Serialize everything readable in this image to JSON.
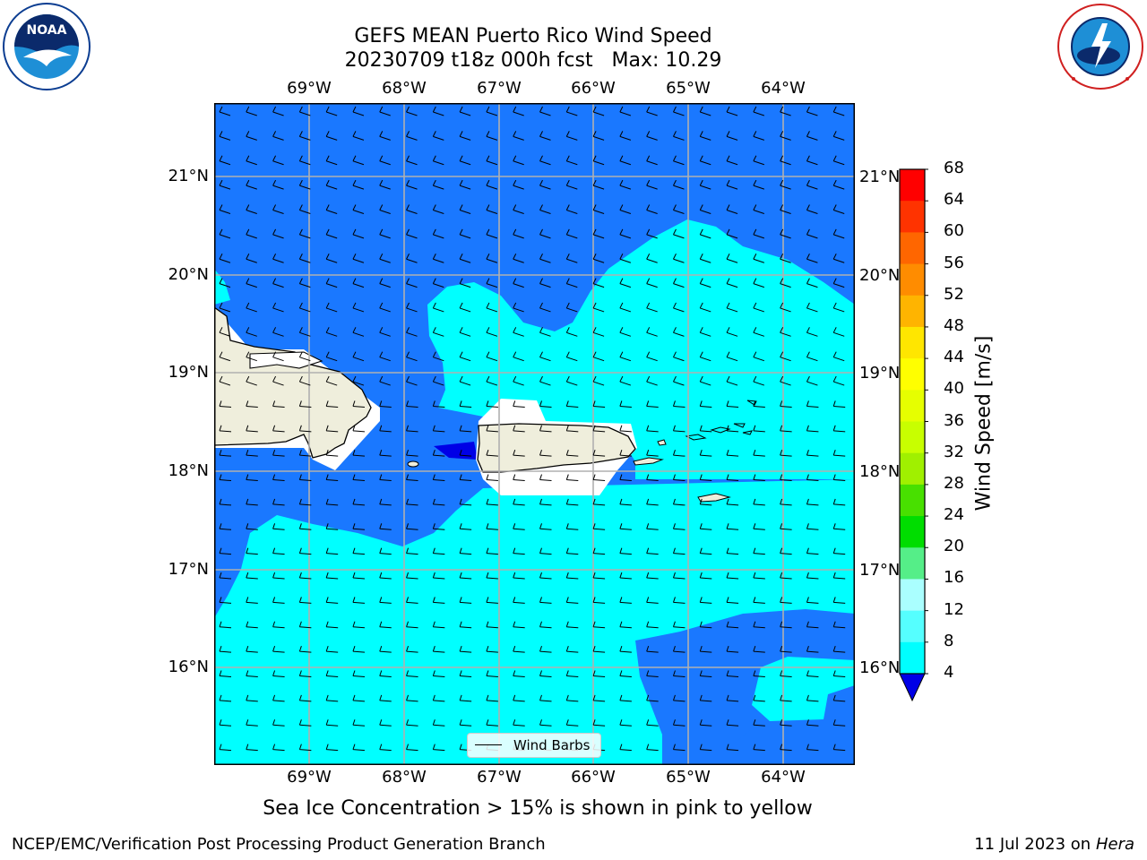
{
  "header": {
    "title_line1": "GEFS MEAN Puerto Rico Wind Speed",
    "title_line2": "20230709 t18z 000h fcst   Max: 10.29"
  },
  "logos": {
    "left": {
      "icon": "noaa-logo-icon",
      "text": "NOAA",
      "ring_text": "NATIONAL OCEANIC AND ATMOSPHERIC ADMINISTRATION · U.S. DEPARTMENT OF COMMERCE"
    },
    "right": {
      "icon": "nws-logo-icon",
      "ring_text": "NATIONAL WEATHER SERVICE"
    }
  },
  "map": {
    "lon_labels": [
      "69°W",
      "68°W",
      "67°W",
      "66°W",
      "65°W",
      "64°W"
    ],
    "lat_labels": [
      "21°N",
      "20°N",
      "19°N",
      "18°N",
      "17°N",
      "16°N"
    ],
    "colors": {
      "band_4_8": "#1a78ff",
      "band_8_12": "#00ffff",
      "band_0_4": "#0000e6",
      "land": "#efeedc",
      "grid": "#b0b0b0"
    }
  },
  "legend": {
    "label": "Wind Barbs"
  },
  "colorbar": {
    "title": "Wind Speed [m/s]",
    "ticks": [
      "68",
      "64",
      "60",
      "56",
      "52",
      "48",
      "44",
      "40",
      "36",
      "32",
      "28",
      "24",
      "20",
      "16",
      "12",
      "8",
      "4"
    ],
    "colors": [
      "#ff0000",
      "#ff3300",
      "#ff6600",
      "#ff8c00",
      "#ffb400",
      "#ffe600",
      "#ffff00",
      "#e6ff00",
      "#c8ff00",
      "#a0f000",
      "#48e000",
      "#00dd00",
      "#55ee88",
      "#aaffff",
      "#55ffff",
      "#00ffff",
      "#1a78ff"
    ],
    "extend_color": "#0000e6"
  },
  "subtitle": "Sea Ice Concentration > 15% is shown in pink to yellow",
  "footer": {
    "left": "NCEP/EMC/Verification Post Processing Product Generation Branch",
    "date": "11 Jul 2023 on ",
    "machine": "Hera"
  }
}
